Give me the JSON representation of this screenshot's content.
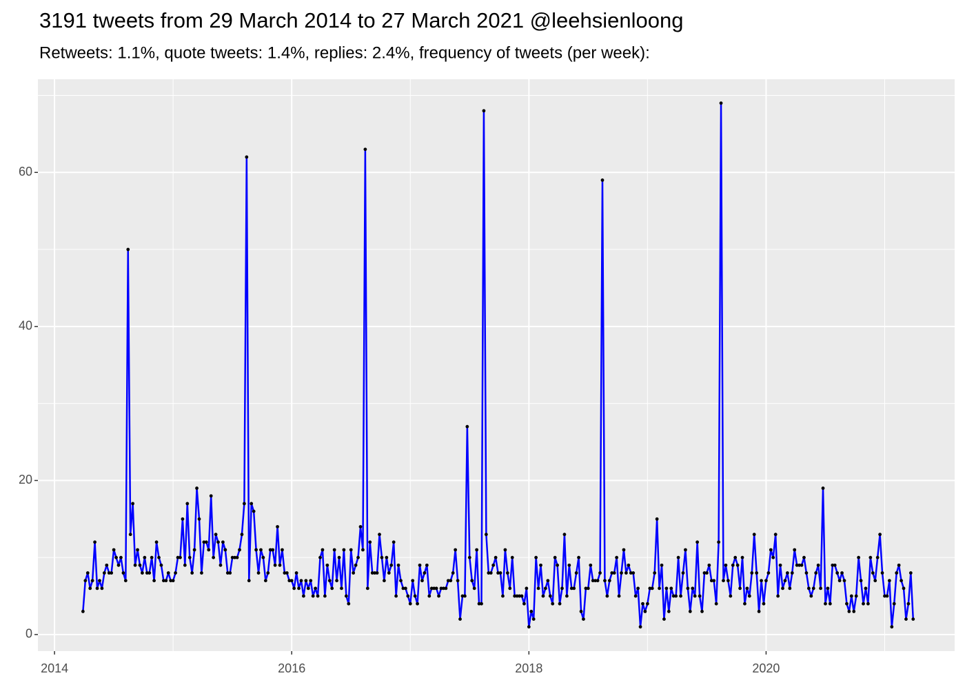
{
  "chart_data": {
    "type": "line",
    "title": "3191 tweets from 29 March 2014 to 27 March 2021 @leehsienloong",
    "subtitle": "Retweets: 1.1%, quote tweets: 1.4%, replies: 2.4%, frequency of tweets (per week):",
    "xlim": [
      2013.86,
      2021.59
    ],
    "ylim": [
      -2.15,
      72.1
    ],
    "xticks": [
      2014,
      2016,
      2018,
      2020
    ],
    "yticks": [
      0,
      20,
      40,
      60
    ],
    "xminor": [
      2015,
      2017,
      2019,
      2021
    ],
    "yminor": [
      10,
      30,
      50,
      70
    ],
    "grid": true,
    "x": [
      2014.24,
      2014.26,
      2014.28,
      2014.3,
      2014.32,
      2014.34,
      2014.36,
      2014.38,
      2014.4,
      2014.42,
      2014.44,
      2014.46,
      2014.48,
      2014.5,
      2014.52,
      2014.54,
      2014.56,
      2014.58,
      2014.6,
      2014.62,
      2014.64,
      2014.66,
      2014.68,
      2014.7,
      2014.72,
      2014.74,
      2014.76,
      2014.78,
      2014.8,
      2014.82,
      2014.84,
      2014.86,
      2014.88,
      2014.9,
      2014.92,
      2014.94,
      2014.96,
      2014.98,
      2015.0,
      2015.02,
      2015.04,
      2015.06,
      2015.08,
      2015.1,
      2015.12,
      2015.14,
      2015.16,
      2015.18,
      2015.2,
      2015.22,
      2015.24,
      2015.26,
      2015.28,
      2015.3,
      2015.32,
      2015.34,
      2015.36,
      2015.38,
      2015.4,
      2015.42,
      2015.44,
      2015.46,
      2015.48,
      2015.5,
      2015.52,
      2015.54,
      2015.56,
      2015.58,
      2015.6,
      2015.62,
      2015.64,
      2015.66,
      2015.68,
      2015.7,
      2015.72,
      2015.74,
      2015.76,
      2015.78,
      2015.8,
      2015.82,
      2015.84,
      2015.86,
      2015.88,
      2015.9,
      2015.92,
      2015.94,
      2015.96,
      2015.98,
      2016.0,
      2016.02,
      2016.04,
      2016.06,
      2016.08,
      2016.1,
      2016.12,
      2016.14,
      2016.16,
      2016.18,
      2016.2,
      2016.22,
      2016.24,
      2016.26,
      2016.28,
      2016.3,
      2016.32,
      2016.34,
      2016.36,
      2016.38,
      2016.4,
      2016.42,
      2016.44,
      2016.46,
      2016.48,
      2016.5,
      2016.52,
      2016.54,
      2016.56,
      2016.58,
      2016.6,
      2016.62,
      2016.64,
      2016.66,
      2016.68,
      2016.7,
      2016.72,
      2016.74,
      2016.76,
      2016.78,
      2016.8,
      2016.82,
      2016.84,
      2016.86,
      2016.88,
      2016.9,
      2016.92,
      2016.94,
      2016.96,
      2016.98,
      2017.0,
      2017.02,
      2017.04,
      2017.06,
      2017.08,
      2017.1,
      2017.12,
      2017.14,
      2017.16,
      2017.18,
      2017.2,
      2017.22,
      2017.24,
      2017.26,
      2017.28,
      2017.3,
      2017.32,
      2017.34,
      2017.36,
      2017.38,
      2017.4,
      2017.42,
      2017.44,
      2017.46,
      2017.48,
      2017.5,
      2017.52,
      2017.54,
      2017.56,
      2017.58,
      2017.6,
      2017.62,
      2017.64,
      2017.66,
      2017.68,
      2017.7,
      2017.72,
      2017.74,
      2017.76,
      2017.78,
      2017.8,
      2017.82,
      2017.84,
      2017.86,
      2017.88,
      2017.9,
      2017.92,
      2017.94,
      2017.96,
      2017.98,
      2018.0,
      2018.02,
      2018.04,
      2018.06,
      2018.08,
      2018.1,
      2018.12,
      2018.14,
      2018.16,
      2018.18,
      2018.2,
      2018.22,
      2018.24,
      2018.26,
      2018.28,
      2018.3,
      2018.32,
      2018.34,
      2018.36,
      2018.38,
      2018.4,
      2018.42,
      2018.44,
      2018.46,
      2018.48,
      2018.5,
      2018.52,
      2018.54,
      2018.56,
      2018.58,
      2018.6,
      2018.62,
      2018.64,
      2018.66,
      2018.68,
      2018.7,
      2018.72,
      2018.74,
      2018.76,
      2018.78,
      2018.8,
      2018.82,
      2018.84,
      2018.86,
      2018.88,
      2018.9,
      2018.92,
      2018.94,
      2018.96,
      2018.98,
      2019.0,
      2019.02,
      2019.04,
      2019.06,
      2019.08,
      2019.1,
      2019.12,
      2019.14,
      2019.16,
      2019.18,
      2019.2,
      2019.22,
      2019.24,
      2019.26,
      2019.28,
      2019.3,
      2019.32,
      2019.34,
      2019.36,
      2019.38,
      2019.4,
      2019.42,
      2019.44,
      2019.46,
      2019.48,
      2019.5,
      2019.52,
      2019.54,
      2019.56,
      2019.58,
      2019.6,
      2019.62,
      2019.64,
      2019.66,
      2019.68,
      2019.7,
      2019.72,
      2019.74,
      2019.76,
      2019.78,
      2019.8,
      2019.82,
      2019.84,
      2019.86,
      2019.88,
      2019.9,
      2019.92,
      2019.94,
      2019.96,
      2019.98,
      2020.0,
      2020.02,
      2020.04,
      2020.06,
      2020.08,
      2020.1,
      2020.12,
      2020.14,
      2020.16,
      2020.18,
      2020.2,
      2020.22,
      2020.24,
      2020.26,
      2020.28,
      2020.3,
      2020.32,
      2020.34,
      2020.36,
      2020.38,
      2020.4,
      2020.42,
      2020.44,
      2020.46,
      2020.48,
      2020.5,
      2020.52,
      2020.54,
      2020.56,
      2020.58,
      2020.6,
      2020.62,
      2020.64,
      2020.66,
      2020.68,
      2020.7,
      2020.72,
      2020.74,
      2020.76,
      2020.78,
      2020.8,
      2020.82,
      2020.84,
      2020.86,
      2020.88,
      2020.9,
      2020.92,
      2020.94,
      2020.96,
      2020.98,
      2021.0,
      2021.02,
      2021.04,
      2021.06,
      2021.08,
      2021.1,
      2021.12,
      2021.14,
      2021.16,
      2021.18,
      2021.2,
      2021.22,
      2021.24
    ],
    "series": [
      {
        "color": "#0000ff",
        "marker_color": "#000000",
        "values": [
          3,
          7,
          8,
          6,
          7,
          12,
          6,
          7,
          6,
          8,
          9,
          8,
          8,
          11,
          10,
          9,
          10,
          8,
          7,
          50,
          13,
          17,
          9,
          11,
          9,
          8,
          10,
          8,
          8,
          10,
          7,
          12,
          10,
          9,
          7,
          7,
          8,
          7,
          7,
          8,
          10,
          10,
          15,
          9,
          17,
          10,
          8,
          11,
          19,
          15,
          8,
          12,
          12,
          11,
          18,
          10,
          13,
          12,
          9,
          12,
          11,
          8,
          8,
          10,
          10,
          10,
          11,
          13,
          17,
          62,
          7,
          17,
          16,
          11,
          8,
          11,
          10,
          7,
          8,
          11,
          11,
          9,
          14,
          9,
          11,
          8,
          8,
          7,
          7,
          6,
          8,
          6,
          7,
          5,
          7,
          6,
          7,
          5,
          6,
          5,
          10,
          11,
          5,
          9,
          7,
          6,
          11,
          7,
          10,
          6,
          11,
          5,
          4,
          11,
          8,
          9,
          10,
          14,
          11,
          63,
          6,
          12,
          8,
          8,
          8,
          13,
          10,
          7,
          10,
          8,
          9,
          12,
          5,
          9,
          7,
          6,
          6,
          5,
          4,
          7,
          5,
          4,
          9,
          7,
          8,
          9,
          5,
          6,
          6,
          6,
          5,
          6,
          6,
          6,
          7,
          7,
          8,
          11,
          7,
          2,
          5,
          5,
          27,
          10,
          7,
          6,
          11,
          4,
          4,
          68,
          13,
          8,
          8,
          9,
          10,
          8,
          8,
          5,
          11,
          8,
          6,
          10,
          5,
          5,
          5,
          5,
          4,
          6,
          1,
          3,
          2,
          10,
          6,
          9,
          5,
          6,
          7,
          5,
          4,
          10,
          9,
          4,
          6,
          13,
          5,
          9,
          6,
          6,
          8,
          10,
          3,
          2,
          6,
          6,
          9,
          7,
          7,
          7,
          8,
          59,
          7,
          5,
          7,
          8,
          8,
          10,
          5,
          8,
          11,
          8,
          9,
          8,
          8,
          5,
          6,
          1,
          4,
          3,
          4,
          6,
          6,
          8,
          15,
          6,
          9,
          2,
          6,
          3,
          6,
          5,
          5,
          10,
          5,
          8,
          11,
          6,
          3,
          6,
          5,
          12,
          5,
          3,
          8,
          8,
          9,
          7,
          7,
          4,
          12,
          69,
          7,
          9,
          7,
          5,
          9,
          10,
          9,
          6,
          10,
          4,
          6,
          5,
          8,
          13,
          8,
          3,
          7,
          4,
          7,
          8,
          11,
          10,
          13,
          5,
          9,
          6,
          7,
          8,
          6,
          8,
          11,
          9,
          9,
          9,
          10,
          8,
          6,
          5,
          6,
          8,
          9,
          6,
          19,
          4,
          6,
          4,
          9,
          9,
          8,
          7,
          8,
          7,
          4,
          3,
          5,
          3,
          5,
          10,
          7,
          4,
          6,
          4,
          10,
          8,
          7,
          10,
          13,
          8,
          5,
          5,
          7,
          1,
          4,
          8,
          9,
          7,
          6,
          2,
          4,
          8,
          2
        ]
      }
    ]
  }
}
